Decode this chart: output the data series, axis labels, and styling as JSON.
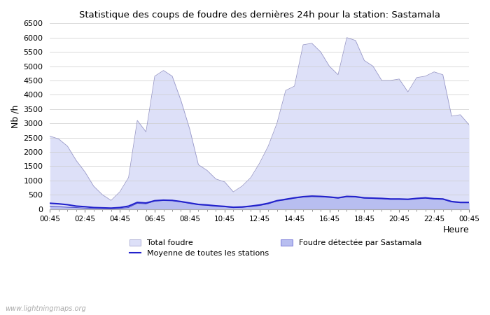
{
  "title": "Statistique des coups de foudre des dernières 24h pour la station: Sastamala",
  "xlabel": "Heure",
  "ylabel": "Nb /h",
  "ylim": [
    0,
    6500
  ],
  "yticks": [
    0,
    500,
    1000,
    1500,
    2000,
    2500,
    3000,
    3500,
    4000,
    4500,
    5000,
    5500,
    6000,
    6500
  ],
  "xtick_labels": [
    "00:45",
    "02:45",
    "04:45",
    "06:45",
    "08:45",
    "10:45",
    "12:45",
    "14:45",
    "16:45",
    "18:45",
    "20:45",
    "22:45",
    "00:45"
  ],
  "background_color": "#ffffff",
  "plot_bg_color": "#ffffff",
  "grid_color": "#cccccc",
  "total_foudre_color": "#dde0f8",
  "total_foudre_edge_color": "#9898c8",
  "sastamala_color": "#b8bef0",
  "sastamala_edge_color": "#5555cc",
  "mean_line_color": "#2222cc",
  "watermark": "www.lightningmaps.org",
  "total_foudre_values": [
    2550,
    2450,
    2200,
    1700,
    1300,
    800,
    500,
    300,
    600,
    1100,
    3100,
    2700,
    4650,
    4850,
    4650,
    3800,
    2800,
    1550,
    1350,
    1050,
    950,
    600,
    800,
    1100,
    1600,
    2200,
    3000,
    4150,
    4300,
    5750,
    5800,
    5500,
    5000,
    4700,
    6000,
    5900,
    5200,
    5000,
    4500,
    4500,
    4550,
    4100,
    4600,
    4650,
    4800,
    4700,
    3250,
    3300,
    2950
  ],
  "sastamala_values": [
    100,
    80,
    60,
    50,
    30,
    20,
    15,
    10,
    20,
    50,
    200,
    180,
    280,
    300,
    300,
    250,
    200,
    150,
    130,
    100,
    80,
    50,
    60,
    90,
    120,
    180,
    280,
    320,
    380,
    420,
    440,
    430,
    410,
    380,
    430,
    420,
    380,
    370,
    360,
    340,
    340,
    330,
    360,
    380,
    350,
    340,
    250,
    220,
    220
  ],
  "mean_values": [
    200,
    180,
    150,
    100,
    80,
    50,
    40,
    30,
    50,
    100,
    230,
    210,
    290,
    310,
    300,
    260,
    210,
    160,
    140,
    110,
    90,
    60,
    70,
    100,
    140,
    200,
    290,
    340,
    390,
    430,
    450,
    440,
    420,
    390,
    440,
    430,
    390,
    380,
    370,
    350,
    350,
    340,
    370,
    390,
    360,
    350,
    260,
    230,
    230
  ]
}
